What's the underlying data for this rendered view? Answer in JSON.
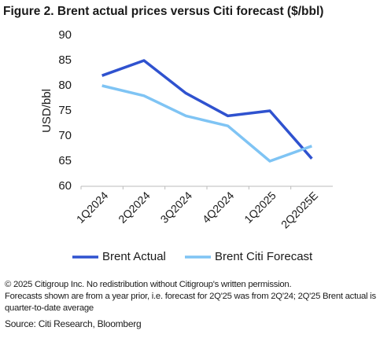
{
  "chart_data": {
    "type": "line",
    "title": "Figure 2. Brent actual prices versus Citi forecast ($/bbl)",
    "y_label": "USD/bbl",
    "categories": [
      "1Q2024",
      "2Q2024",
      "3Q2024",
      "4Q2024",
      "1Q2025",
      "2Q2025E"
    ],
    "series": [
      {
        "name": "Brent Actual",
        "color": "#2f52cf",
        "values": [
          82,
          85,
          78.5,
          74,
          75,
          65.5
        ]
      },
      {
        "name": "Brent Citi Forecast",
        "color": "#7fc4f4",
        "values": [
          80,
          78,
          74,
          72,
          65,
          68
        ]
      }
    ],
    "ylim": [
      60,
      90
    ],
    "yticks": [
      60,
      65,
      70,
      75,
      80,
      85,
      90
    ],
    "grid": false,
    "legend": "bottom",
    "notes": [
      "© 2025 Citigroup Inc. No redistribution without Citigroup's written permission.",
      "Forecasts shown are from a year prior, i.e. forecast for 2Q'25 was from 2Q'24; 2Q'25 Brent actual is quarter-to-date average"
    ],
    "source": "Source: Citi Research, Bloomberg"
  }
}
